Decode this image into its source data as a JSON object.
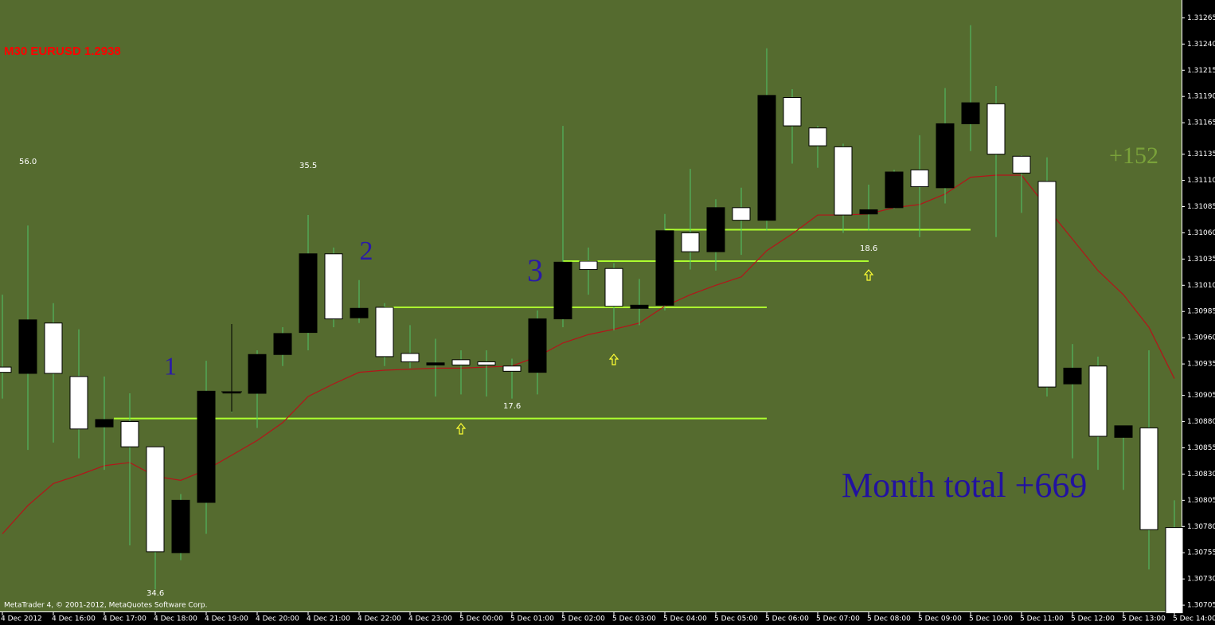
{
  "chart_data": {
    "type": "candlestick",
    "title": "M30 EURUSD 1.2938",
    "credit": "MetaTrader 4, © 2001-2012, MetaQuotes Software Corp.",
    "categories": [
      "4 Dec 2012",
      null,
      "4 Dec 16:00",
      null,
      "4 Dec 17:00",
      null,
      "4 Dec 18:00",
      null,
      "4 Dec 19:00",
      null,
      "4 Dec 20:00",
      null,
      "4 Dec 21:00",
      null,
      "4 Dec 22:00",
      null,
      "4 Dec 23:00",
      null,
      "5 Dec 00:00",
      null,
      "5 Dec 01:00",
      null,
      "5 Dec 02:00",
      null,
      "5 Dec 03:00",
      null,
      "5 Dec 04:00",
      null,
      "5 Dec 05:00",
      null,
      "5 Dec 06:00",
      null,
      "5 Dec 07:00",
      null,
      "5 Dec 08:00",
      null,
      "5 Dec 09:00",
      null,
      "5 Dec 10:00",
      null,
      "5 Dec 11:00",
      null,
      "5 Dec 12:00",
      null,
      "5 Dec 13:00",
      null,
      "5 Dec 14:00"
    ],
    "open": [
      1.30932,
      1.30926,
      1.30974,
      1.30923,
      1.30875,
      1.3088,
      1.30856,
      1.30755,
      1.30803,
      1.30908,
      1.30907,
      1.30944,
      1.30965,
      1.3104,
      1.30979,
      1.30989,
      1.30945,
      1.30934,
      1.30939,
      1.30937,
      1.30933,
      1.30927,
      1.30978,
      1.31033,
      1.31026,
      1.30988,
      1.30991,
      1.3106,
      1.31042,
      1.31084,
      1.31072,
      1.31189,
      1.3116,
      1.31142,
      1.31078,
      1.31084,
      1.3112,
      1.31103,
      1.31164,
      1.31183,
      1.31133,
      1.31109,
      1.30916,
      1.30933,
      1.30865,
      1.30874,
      1.30779
    ],
    "high": [
      1.31001,
      1.31067,
      1.30993,
      1.30968,
      1.30923,
      1.30907,
      1.30856,
      1.30811,
      1.30938,
      1.30973,
      1.30948,
      1.3097,
      1.31077,
      1.31046,
      1.31015,
      1.30993,
      1.30972,
      1.30959,
      1.30948,
      1.30948,
      1.3094,
      1.30986,
      1.31162,
      1.31046,
      1.31031,
      1.31016,
      1.31078,
      1.31121,
      1.31092,
      1.31103,
      1.31236,
      1.31197,
      1.31162,
      1.31145,
      1.31106,
      1.3112,
      1.31153,
      1.31198,
      1.31258,
      1.312,
      1.31134,
      1.31132,
      1.30954,
      1.30942,
      1.30876,
      1.30948,
      1.30805
    ],
    "low": [
      1.30902,
      1.30853,
      1.3086,
      1.30845,
      1.30834,
      1.30762,
      1.3072,
      1.30748,
      1.30773,
      1.30889,
      1.30874,
      1.30933,
      1.30948,
      1.3097,
      1.30974,
      1.30933,
      1.30931,
      1.30904,
      1.30906,
      1.30904,
      1.30902,
      1.30906,
      1.3097,
      1.31001,
      1.30967,
      1.30972,
      1.30986,
      1.31025,
      1.31024,
      1.31039,
      1.31062,
      1.31126,
      1.31122,
      1.3106,
      1.31062,
      1.31083,
      1.31056,
      1.31088,
      1.31138,
      1.31056,
      1.31079,
      1.30904,
      1.30845,
      1.30834,
      1.30815,
      1.30739,
      1.30697
    ],
    "close": [
      1.30927,
      1.30977,
      1.30926,
      1.30873,
      1.30882,
      1.30856,
      1.30756,
      1.30805,
      1.30909,
      1.30908,
      1.30944,
      1.30964,
      1.3104,
      1.30978,
      1.30988,
      1.30942,
      1.30937,
      1.30936,
      1.30934,
      1.30934,
      1.30928,
      1.30978,
      1.31032,
      1.31025,
      1.3099,
      1.30991,
      1.31062,
      1.31042,
      1.31084,
      1.31072,
      1.31191,
      1.31162,
      1.31143,
      1.31077,
      1.31082,
      1.31118,
      1.31104,
      1.31164,
      1.31184,
      1.31135,
      1.31117,
      1.30913,
      1.30931,
      1.30866,
      1.30876,
      1.30777,
      1.30697
    ],
    "up_color": "#000000",
    "down_color": "#ffffff",
    "wick_color": "#4fc46a",
    "lines": [
      {
        "color": "#b4141a",
        "values": [
          1.30773,
          1.308,
          1.30821,
          1.30829,
          1.30838,
          1.30841,
          1.30828,
          1.30824,
          1.30834,
          1.30848,
          1.30862,
          1.30879,
          1.30904,
          1.30916,
          1.30927,
          1.30929,
          1.3093,
          1.30931,
          1.30931,
          1.30932,
          1.30933,
          1.30942,
          1.30955,
          1.30963,
          1.30968,
          1.30974,
          1.3099,
          1.31001,
          1.3101,
          1.31018,
          1.31043,
          1.31059,
          1.31077,
          1.31077,
          1.31078,
          1.31084,
          1.31087,
          1.31097,
          1.31113,
          1.31115,
          1.31115,
          1.31084,
          1.31054,
          1.31024,
          1.31001,
          1.3097,
          1.30921
        ]
      }
    ],
    "levels": [
      1.30883,
      1.30989,
      1.31033,
      1.31063
    ],
    "level_color": "#adff2f",
    "annotations": [
      {
        "text": "56.0"
      },
      {
        "text": "35.5"
      },
      {
        "text": "34.6"
      },
      {
        "text": "17.6"
      },
      {
        "text": "18.6"
      },
      {
        "text": "1"
      },
      {
        "text": "2"
      },
      {
        "text": "3"
      },
      {
        "text": "+152"
      },
      {
        "text": "Month total +669"
      }
    ],
    "ylim": [
      1.30699,
      1.31282
    ],
    "yticks": [
      1.31265,
      {
        "value": 1.3124,
        "label": "1.31240"
      },
      1.31215,
      {
        "value": 1.3119,
        "label": "1.31190"
      },
      1.31165,
      1.31135,
      {
        "value": 1.3111,
        "label": "1.31110"
      },
      1.31085,
      {
        "value": 1.3106,
        "label": "1.31060"
      },
      1.31035,
      {
        "value": 1.3101,
        "label": "1.31010"
      },
      1.30985,
      {
        "value": 1.3096,
        "label": "1.30960"
      },
      1.30935,
      1.30905,
      {
        "value": 1.3088,
        "label": "1.30880"
      },
      1.30855,
      {
        "value": 1.3083,
        "label": "1.30830"
      },
      1.30805,
      {
        "value": 1.3078,
        "label": "1.30780"
      },
      1.30755,
      {
        "value": 1.3073,
        "label": "1.30730"
      },
      1.30705
    ],
    "grid": false
  }
}
